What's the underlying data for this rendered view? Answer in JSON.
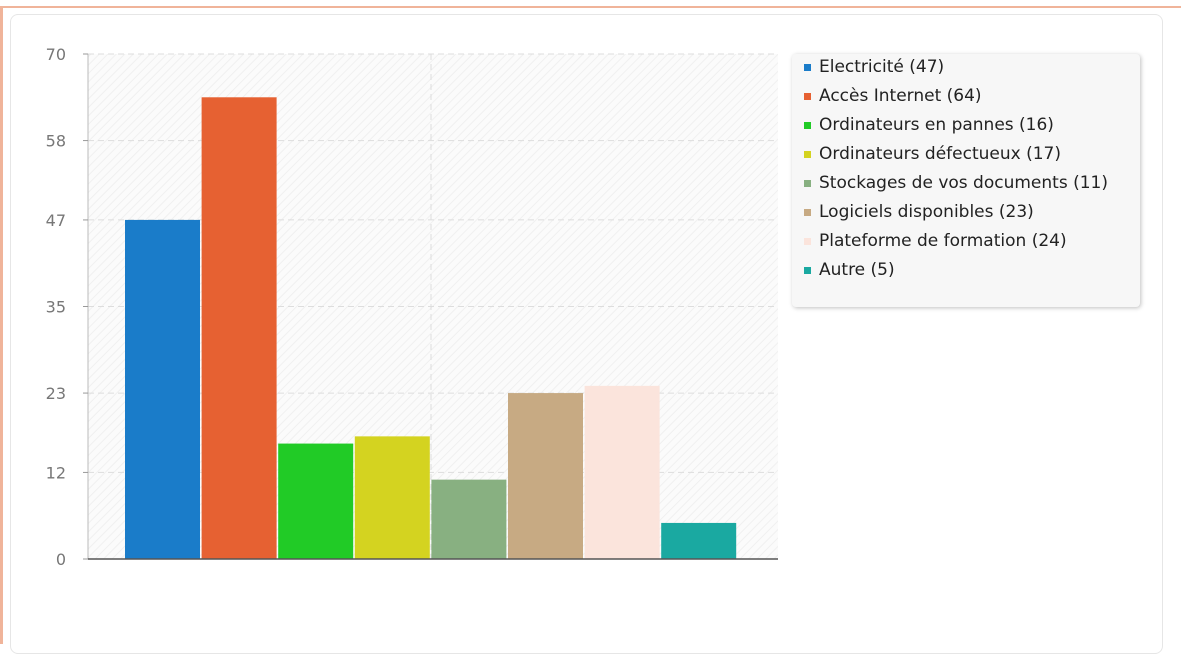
{
  "chart_data": {
    "type": "bar",
    "categories": [
      "Electricité",
      "Accès Internet",
      "Ordinateurs en pannes",
      "Ordinateurs défectueux",
      "Stockages de vos documents",
      "Logiciels disponibles",
      "Plateforme de formation",
      "Autre"
    ],
    "values": [
      47,
      64,
      16,
      17,
      11,
      23,
      24,
      5
    ],
    "colors": [
      "#1a7cc9",
      "#e66132",
      "#21cb26",
      "#d4d320",
      "#88b081",
      "#c7aa83",
      "#fbe4dc",
      "#1aa9a1"
    ],
    "legend_labels": [
      "Electricité (47)",
      "Accès Internet (64)",
      "Ordinateurs en pannes (16)",
      "Ordinateurs défectueux (17)",
      "Stockages de vos documents (11)",
      "Logiciels disponibles (23)",
      "Plateforme de formation (24)",
      "Autre (5)"
    ],
    "yticks": [
      "0",
      "12",
      "23",
      "35",
      "47",
      "58",
      "70"
    ],
    "ylim": [
      0,
      70
    ],
    "grid": true,
    "legend_position": "right",
    "title": "",
    "xlabel": "",
    "ylabel": ""
  }
}
